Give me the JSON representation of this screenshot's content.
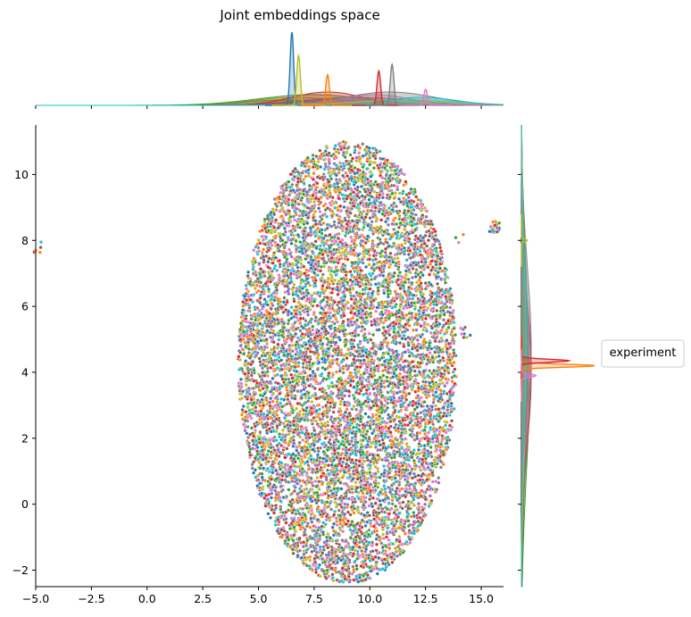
{
  "chart_data": {
    "type": "scatter",
    "title": "Joint embeddings space",
    "xlabel": "",
    "ylabel": "",
    "xlim": [
      -5,
      16
    ],
    "ylim": [
      -2.5,
      11.5
    ],
    "xticks": [
      -5.0,
      -2.5,
      0.0,
      2.5,
      5.0,
      7.5,
      10.0,
      12.5,
      15.0
    ],
    "xtick_labels": [
      "−5.0",
      "−2.5",
      "0.0",
      "2.5",
      "5.0",
      "7.5",
      "10.0",
      "12.5",
      "15.0"
    ],
    "yticks": [
      -2,
      0,
      2,
      4,
      6,
      8,
      10
    ],
    "ytick_labels": [
      "−2",
      "0",
      "2",
      "4",
      "6",
      "8",
      "10"
    ],
    "grid": false,
    "legend": {
      "title": "experiment",
      "placement": "right"
    },
    "marginals": {
      "top": "kde of x per experiment",
      "right": "kde of y per experiment"
    },
    "palette": [
      "#1f77b4",
      "#ff7f0e",
      "#2ca02c",
      "#d62728",
      "#9467bd",
      "#8c564b",
      "#e377c2",
      "#7f7f7f",
      "#bcbd22",
      "#17becf"
    ],
    "main_cloud": {
      "x_center": 9.0,
      "y_center": 4.3,
      "x_halfwidth": 4.9,
      "y_halfwidth": 6.7,
      "approx_points": 9000
    },
    "outlier_clusters": [
      {
        "x": -4.9,
        "y": 7.8,
        "approx_points": 6
      },
      {
        "x": 15.6,
        "y": 8.4,
        "approx_points": 25
      },
      {
        "x": 14.0,
        "y": 8.1,
        "approx_points": 3
      },
      {
        "x": 14.3,
        "y": 5.2,
        "approx_points": 8
      }
    ],
    "top_marginal_peaks": [
      {
        "x": 6.5,
        "height": 1.0,
        "color": "#1f77b4"
      },
      {
        "x": 6.8,
        "height": 0.68,
        "color": "#bcbd22"
      },
      {
        "x": 8.1,
        "height": 0.42,
        "color": "#ff7f0e"
      },
      {
        "x": 10.4,
        "height": 0.47,
        "color": "#d62728"
      },
      {
        "x": 11.0,
        "height": 0.56,
        "color": "#7f7f7f"
      },
      {
        "x": 12.5,
        "height": 0.22,
        "color": "#e377c2"
      }
    ],
    "right_marginal_peaks": [
      {
        "y": 4.2,
        "height": 1.0,
        "color": "#ff7f0e"
      },
      {
        "y": 4.35,
        "height": 0.65,
        "color": "#d62728"
      },
      {
        "y": 3.9,
        "height": 0.2,
        "color": "#e377c2"
      },
      {
        "y": 8.0,
        "height": 0.08,
        "color": "#bcbd22"
      }
    ]
  }
}
